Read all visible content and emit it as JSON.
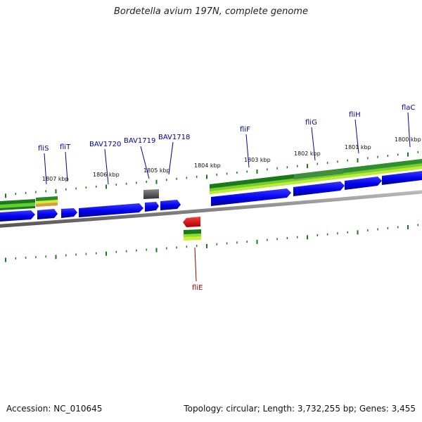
{
  "title": "Bordetella avium 197N, complete genome",
  "footer": {
    "accession": "Accession: NC_010645",
    "summary": "Topology: circular; Length: 3,732,255 bp; Genes: 3,455"
  },
  "scale_labels": [
    "1807 kbp",
    "1806 kbp",
    "1805 kbp",
    "1804 kbp",
    "1803 kbp",
    "1802 kbp",
    "1801 kbp",
    "1800 kbp"
  ],
  "genes_forward": [
    "fliS",
    "fliT",
    "BAV1720",
    "BAV1719",
    "BAV1718",
    "fliF",
    "fliG",
    "fliH",
    "flaC"
  ],
  "genes_reverse": [
    "fliE"
  ],
  "colors": {
    "cds": "#0000ee",
    "highlight": "#ee0000",
    "pseudo": "#555555",
    "forward_label": "#000099",
    "reverse_label": "#990000",
    "backbone": "#888888",
    "tick": "#1a7a1a"
  }
}
